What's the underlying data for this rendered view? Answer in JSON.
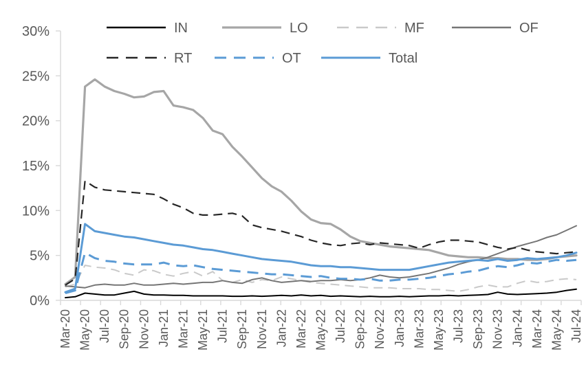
{
  "chart_data": {
    "type": "line",
    "title": "",
    "xlabel": "",
    "ylabel": "",
    "grid": false,
    "legend_position": "top",
    "axis_color": "#d9d9d9",
    "tick_label_color": "#595959",
    "y_axis": {
      "min": 0,
      "max": 30,
      "step": 5,
      "tick_labels": [
        "0%",
        "5%",
        "10%",
        "15%",
        "20%",
        "25%",
        "30%"
      ]
    },
    "x_axis": {
      "points_per_label": 2,
      "tick_labels": [
        "Mar-20",
        "May-20",
        "Jul-20",
        "Sep-20",
        "Nov-20",
        "Jan-21",
        "Mar-21",
        "May-21",
        "Jul-21",
        "Sep-21",
        "Nov-21",
        "Jan-22",
        "Mar-22",
        "May-22",
        "Jul-22",
        "Sep-22",
        "Nov-22",
        "Jan-23",
        "Mar-23",
        "May-23",
        "Jul-23",
        "Sep-23",
        "Nov-23",
        "Jan-24",
        "Mar-24",
        "May-24",
        "Jul-24"
      ]
    },
    "legend_rows": [
      [
        "IN",
        "LO",
        "MF",
        "OF"
      ],
      [
        "RT",
        "OT",
        "Total"
      ]
    ],
    "series": [
      {
        "name": "IN",
        "color": "#000000",
        "line_style": "solid",
        "width": 2,
        "values": [
          0.3,
          0.4,
          0.8,
          0.7,
          0.6,
          0.6,
          0.8,
          1.0,
          0.7,
          0.6,
          0.6,
          0.55,
          0.55,
          0.5,
          0.5,
          0.5,
          0.5,
          0.45,
          0.45,
          0.5,
          0.45,
          0.5,
          0.55,
          0.5,
          0.6,
          0.5,
          0.55,
          0.45,
          0.5,
          0.45,
          0.4,
          0.45,
          0.4,
          0.4,
          0.45,
          0.4,
          0.45,
          0.5,
          0.5,
          0.55,
          0.5,
          0.55,
          0.6,
          0.65,
          0.9,
          0.7,
          0.65,
          0.7,
          0.75,
          0.8,
          0.9,
          1.1,
          1.25
        ]
      },
      {
        "name": "LO",
        "color": "#a6a6a6",
        "line_style": "solid",
        "width": 3.2,
        "values": [
          1.8,
          2.6,
          23.8,
          24.6,
          23.8,
          23.3,
          23.0,
          22.6,
          22.7,
          23.2,
          23.3,
          21.7,
          21.5,
          21.2,
          20.3,
          18.9,
          18.5,
          17.1,
          16.0,
          14.8,
          13.6,
          12.7,
          12.1,
          11.1,
          9.9,
          9.0,
          8.6,
          8.5,
          7.9,
          7.1,
          6.6,
          6.4,
          6.2,
          6.0,
          5.9,
          5.8,
          5.7,
          5.6,
          5.3,
          5.0,
          4.9,
          4.8,
          4.8,
          4.7,
          4.7,
          4.6,
          4.6,
          4.5,
          4.5,
          4.6,
          4.8,
          4.9,
          5.0
        ]
      },
      {
        "name": "MF",
        "color": "#c9c9c9",
        "line_style": "dashed",
        "width": 2,
        "values": [
          1.5,
          1.8,
          3.9,
          3.7,
          3.6,
          3.4,
          3.0,
          2.8,
          3.4,
          3.3,
          2.9,
          2.7,
          3.0,
          3.2,
          2.7,
          3.2,
          2.2,
          2.0,
          2.3,
          2.0,
          2.3,
          2.2,
          2.6,
          2.4,
          2.2,
          2.0,
          1.9,
          1.8,
          1.7,
          1.6,
          1.5,
          1.4,
          1.4,
          1.4,
          1.3,
          1.3,
          1.3,
          1.2,
          1.2,
          1.1,
          1.0,
          1.2,
          1.5,
          1.7,
          1.5,
          1.5,
          1.9,
          2.2,
          2.0,
          2.1,
          2.3,
          2.4,
          2.3
        ]
      },
      {
        "name": "OF",
        "color": "#757575",
        "line_style": "solid",
        "width": 2,
        "values": [
          1.6,
          1.5,
          1.4,
          1.7,
          1.8,
          1.7,
          1.7,
          1.9,
          1.7,
          1.7,
          1.8,
          1.9,
          1.8,
          1.9,
          2.0,
          2.0,
          2.2,
          2.0,
          1.9,
          2.3,
          2.5,
          2.2,
          2.0,
          2.1,
          2.2,
          2.1,
          2.2,
          2.2,
          2.3,
          2.2,
          2.3,
          2.5,
          2.8,
          2.6,
          2.5,
          2.6,
          2.8,
          3.0,
          3.3,
          3.6,
          4.0,
          4.3,
          4.5,
          4.8,
          5.2,
          5.6,
          6.0,
          6.3,
          6.6,
          7.0,
          7.3,
          7.8,
          8.3
        ]
      },
      {
        "name": "RT",
        "color": "#262626",
        "line_style": "dashed",
        "width": 2.2,
        "values": [
          1.7,
          2.4,
          13.3,
          12.6,
          12.3,
          12.2,
          12.1,
          12.0,
          11.9,
          11.8,
          11.3,
          10.7,
          10.3,
          9.7,
          9.5,
          9.5,
          9.6,
          9.7,
          9.4,
          8.4,
          8.1,
          7.9,
          7.7,
          7.4,
          7.1,
          6.7,
          6.4,
          6.2,
          6.1,
          6.3,
          6.4,
          6.2,
          6.4,
          6.3,
          6.2,
          6.1,
          5.8,
          6.2,
          6.5,
          6.7,
          6.7,
          6.6,
          6.5,
          6.2,
          5.9,
          5.7,
          5.9,
          5.6,
          5.4,
          5.3,
          5.2,
          5.3,
          5.4
        ]
      },
      {
        "name": "OT",
        "color": "#5b9bd5",
        "line_style": "dashed",
        "width": 3,
        "values": [
          0.8,
          1.1,
          5.3,
          4.7,
          4.4,
          4.3,
          4.1,
          4.0,
          4.0,
          4.0,
          4.2,
          3.9,
          3.8,
          3.9,
          3.7,
          3.5,
          3.4,
          3.3,
          3.2,
          3.1,
          3.0,
          2.9,
          2.9,
          2.8,
          2.7,
          2.6,
          2.7,
          2.5,
          2.4,
          2.4,
          2.3,
          2.4,
          2.2,
          2.2,
          2.3,
          2.3,
          2.4,
          2.5,
          2.7,
          2.9,
          3.0,
          3.2,
          3.3,
          3.6,
          3.8,
          3.7,
          3.9,
          4.2,
          4.1,
          4.3,
          4.5,
          4.4,
          4.5
        ]
      },
      {
        "name": "Total",
        "color": "#5b9bd5",
        "line_style": "solid",
        "width": 3,
        "values": [
          0.9,
          1.3,
          8.5,
          7.7,
          7.5,
          7.3,
          7.1,
          7.0,
          6.8,
          6.6,
          6.4,
          6.2,
          6.1,
          5.9,
          5.7,
          5.6,
          5.4,
          5.2,
          5.0,
          4.8,
          4.6,
          4.5,
          4.4,
          4.3,
          4.1,
          3.9,
          3.8,
          3.8,
          3.7,
          3.7,
          3.6,
          3.5,
          3.4,
          3.4,
          3.4,
          3.4,
          3.6,
          3.8,
          4.0,
          4.2,
          4.3,
          4.4,
          4.5,
          4.4,
          4.6,
          4.4,
          4.5,
          4.7,
          4.6,
          4.7,
          4.8,
          5.0,
          5.3
        ]
      }
    ]
  }
}
